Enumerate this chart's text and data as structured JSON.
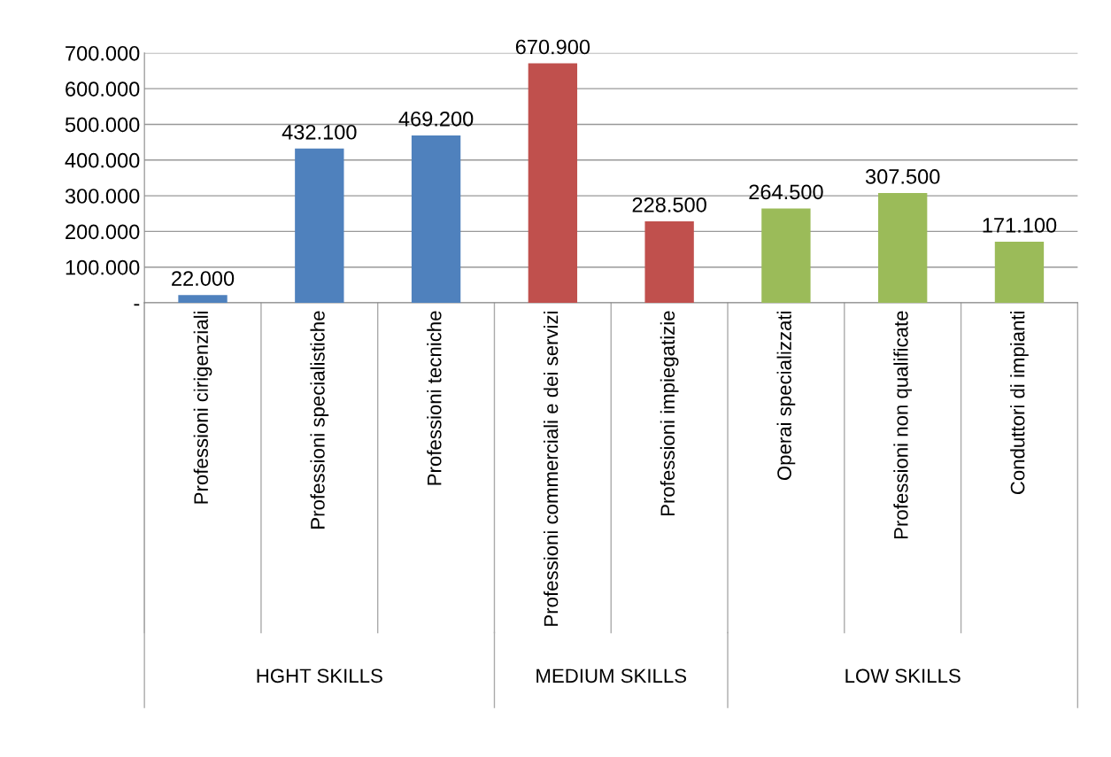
{
  "chart_data": {
    "type": "bar",
    "categories": [
      "Professioni cirigenziali",
      "Professioni specialistiche",
      "Professioni tecniche",
      "Professioni commerciali e dei servizi",
      "Professioni impiegatizie",
      "Operai specializzati",
      "Professioni non qualificate",
      "Conduttori di impianti"
    ],
    "values": [
      22000,
      432100,
      469200,
      670900,
      228500,
      264500,
      307500,
      171100
    ],
    "value_labels": [
      "22.000",
      "432.100",
      "469.200",
      "670.900",
      "228.500",
      "264.500",
      "307.500",
      "171.100"
    ],
    "colors": [
      "#4f81bd",
      "#4f81bd",
      "#4f81bd",
      "#c0504d",
      "#c0504d",
      "#9bbb59",
      "#9bbb59",
      "#9bbb59"
    ],
    "annotations": [
      "HGHT SKILLS",
      "MEDIUM SKILLS",
      "LOW SKILLS"
    ],
    "ylim": [
      0,
      700000
    ],
    "yticks": [
      {
        "value": 0,
        "label": "-"
      },
      {
        "value": 100000,
        "label": "100.000"
      },
      {
        "value": 200000,
        "label": "200.000"
      },
      {
        "value": 300000,
        "label": "300.000"
      },
      {
        "value": 400000,
        "label": "400.000"
      },
      {
        "value": 500000,
        "label": "500.000"
      },
      {
        "value": 600000,
        "label": "600.000"
      },
      {
        "value": 700000,
        "label": "700.000"
      }
    ],
    "grid": "y",
    "legend": false
  }
}
